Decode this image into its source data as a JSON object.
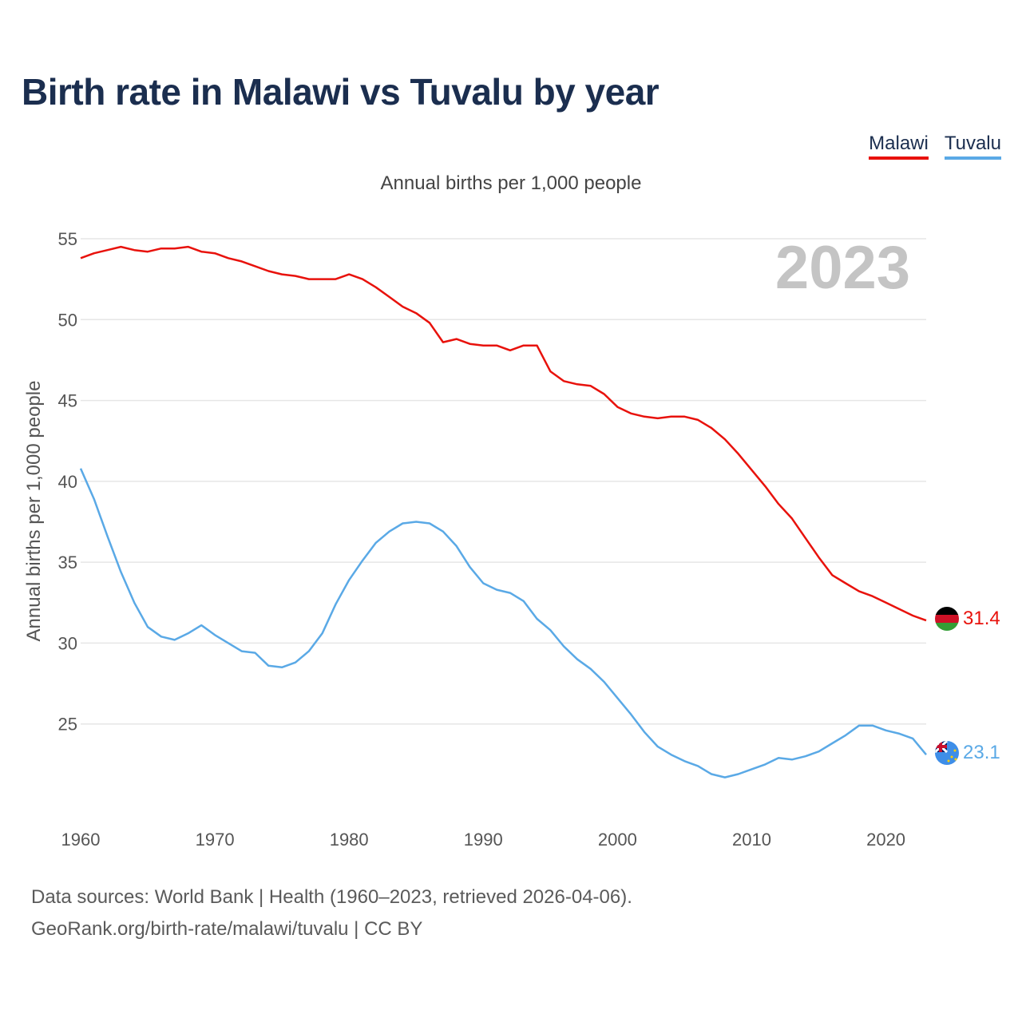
{
  "title": "Birth rate in Malawi vs Tuvalu by year",
  "legend": {
    "malawi": "Malawi",
    "tuvalu": "Tuvalu"
  },
  "subtitle": "Annual births per 1,000 people",
  "footer": {
    "line1": "Data sources: World Bank | Health (1960–2023, retrieved 2026-04-06).",
    "line2": "GeoRank.org/birth-rate/malawi/tuvalu | CC BY"
  },
  "colors": {
    "malawi": "#e8120c",
    "tuvalu": "#5aa9e6",
    "grid": "#e6e6e6"
  },
  "chart_data": {
    "type": "line",
    "title": "Birth rate in Malawi vs Tuvalu by year",
    "xlabel": "",
    "ylabel": "Annual births per 1,000 people",
    "ylim": [
      20,
      55
    ],
    "xlim": [
      1960,
      2023
    ],
    "yticks": [
      25,
      30,
      35,
      40,
      45,
      50,
      55
    ],
    "xticks": [
      1960,
      1970,
      1980,
      1990,
      2000,
      2010,
      2020
    ],
    "grid": true,
    "legend_position": "top-right",
    "annotation_year": "2023",
    "x": [
      1960,
      1961,
      1962,
      1963,
      1964,
      1965,
      1966,
      1967,
      1968,
      1969,
      1970,
      1971,
      1972,
      1973,
      1974,
      1975,
      1976,
      1977,
      1978,
      1979,
      1980,
      1981,
      1982,
      1983,
      1984,
      1985,
      1986,
      1987,
      1988,
      1989,
      1990,
      1991,
      1992,
      1993,
      1994,
      1995,
      1996,
      1997,
      1998,
      1999,
      2000,
      2001,
      2002,
      2003,
      2004,
      2005,
      2006,
      2007,
      2008,
      2009,
      2010,
      2011,
      2012,
      2013,
      2014,
      2015,
      2016,
      2017,
      2018,
      2019,
      2020,
      2021,
      2022,
      2023
    ],
    "series": [
      {
        "name": "Malawi",
        "end_label": "31.4",
        "values": [
          53.8,
          54.1,
          54.3,
          54.5,
          54.3,
          54.2,
          54.4,
          54.4,
          54.5,
          54.2,
          54.1,
          53.8,
          53.6,
          53.3,
          53.0,
          52.8,
          52.7,
          52.5,
          52.5,
          52.5,
          52.8,
          52.5,
          52.0,
          51.4,
          50.8,
          50.4,
          49.8,
          48.6,
          48.8,
          48.5,
          48.4,
          48.4,
          48.1,
          48.4,
          48.4,
          46.8,
          46.2,
          46.0,
          45.9,
          45.4,
          44.6,
          44.2,
          44.0,
          43.9,
          44.0,
          44.0,
          43.8,
          43.3,
          42.6,
          41.7,
          40.7,
          39.7,
          38.6,
          37.7,
          36.5,
          35.3,
          34.2,
          33.7,
          33.2,
          32.9,
          32.5,
          32.1,
          31.7,
          31.4
        ]
      },
      {
        "name": "Tuvalu",
        "end_label": "23.1",
        "values": [
          40.8,
          38.9,
          36.6,
          34.4,
          32.5,
          31.0,
          30.4,
          30.2,
          30.6,
          31.1,
          30.5,
          30.0,
          29.5,
          29.4,
          28.6,
          28.5,
          28.8,
          29.5,
          30.6,
          32.4,
          33.9,
          35.1,
          36.2,
          36.9,
          37.4,
          37.5,
          37.4,
          36.9,
          36.0,
          34.7,
          33.7,
          33.3,
          33.1,
          32.6,
          31.5,
          30.8,
          29.8,
          29.0,
          28.4,
          27.6,
          26.6,
          25.6,
          24.5,
          23.6,
          23.1,
          22.7,
          22.4,
          21.9,
          21.7,
          21.9,
          22.2,
          22.5,
          22.9,
          22.8,
          23.0,
          23.3,
          23.8,
          24.3,
          24.9,
          24.9,
          24.6,
          24.4,
          24.1,
          23.1
        ]
      }
    ]
  }
}
